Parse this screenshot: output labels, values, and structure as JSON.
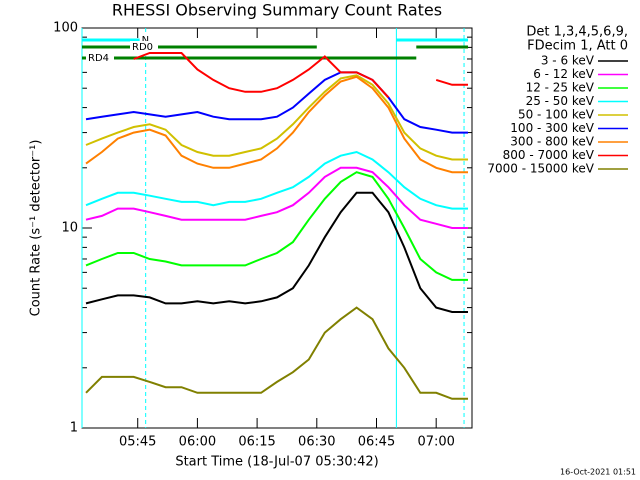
{
  "chart_data": {
    "type": "line",
    "title": "RHESSI Observing Summary Count Rates",
    "x_label": "Start Time (18-Jul-07 05:30:42)",
    "y_label": "Count Rate (s⁻¹ detector⁻¹)",
    "legend_header": [
      "Det 1,3,4,5,6,9,",
      "FDecim 1, Att 0"
    ],
    "footer": "16-Oct-2021 01:51",
    "log_y": true,
    "xlim": [
      "05:31",
      "07:09"
    ],
    "xticks": [
      "05:45",
      "06:00",
      "06:15",
      "06:30",
      "06:45",
      "07:00"
    ],
    "ylim": [
      1,
      100
    ],
    "yticks": [
      1,
      10,
      100
    ],
    "yminorticks": [
      2,
      3,
      4,
      5,
      6,
      7,
      8,
      9,
      20,
      30,
      40,
      50,
      60,
      70,
      80,
      90
    ],
    "x": [
      "05:32",
      "05:36",
      "05:40",
      "05:44",
      "05:48",
      "05:52",
      "05:56",
      "06:00",
      "06:04",
      "06:08",
      "06:12",
      "06:16",
      "06:20",
      "06:24",
      "06:28",
      "06:32",
      "06:36",
      "06:40",
      "06:44",
      "06:48",
      "06:52",
      "06:56",
      "07:00",
      "07:04",
      "07:08"
    ],
    "series": [
      {
        "name": "3 - 6 keV",
        "color": "#000000",
        "values": [
          4.2,
          4.4,
          4.6,
          4.6,
          4.5,
          4.2,
          4.2,
          4.3,
          4.2,
          4.3,
          4.2,
          4.3,
          4.5,
          5,
          6.5,
          9,
          12,
          15,
          15,
          12,
          8,
          5,
          4,
          3.8,
          3.8
        ]
      },
      {
        "name": "6 - 12 keV",
        "color": "#ff00ff",
        "values": [
          11,
          11.5,
          12.5,
          12.5,
          12,
          11.5,
          11,
          11,
          11,
          11,
          11,
          11.5,
          12,
          13,
          15,
          18,
          20,
          20,
          19,
          16,
          13,
          11,
          10.5,
          10,
          10
        ]
      },
      {
        "name": "12 - 25 keV",
        "color": "#00ff00",
        "values": [
          6.5,
          7,
          7.5,
          7.5,
          7,
          6.8,
          6.5,
          6.5,
          6.5,
          6.5,
          6.5,
          7,
          7.5,
          8.5,
          11,
          14,
          17,
          19,
          18,
          14,
          10,
          7,
          6,
          5.5,
          5.5
        ]
      },
      {
        "name": "25 - 50 keV",
        "color": "#00ffff",
        "values": [
          13,
          14,
          15,
          15,
          14.5,
          14,
          13.5,
          13.5,
          13,
          13.5,
          13.5,
          14,
          15,
          16,
          18,
          21,
          23,
          24,
          22,
          19,
          16,
          14,
          13,
          12.5,
          12.5
        ]
      },
      {
        "name": "50 - 100 keV",
        "color": "#d0c000",
        "values": [
          26,
          28,
          30,
          32,
          33,
          31,
          26,
          24,
          23,
          23,
          24,
          25,
          28,
          33,
          40,
          48,
          56,
          58,
          52,
          42,
          30,
          25,
          23,
          22,
          22
        ]
      },
      {
        "name": "100 - 300 keV",
        "color": "#0000ff",
        "values": [
          35,
          36,
          37,
          38,
          37,
          36,
          37,
          38,
          36,
          35,
          35,
          35,
          36,
          40,
          47,
          55,
          60,
          60,
          55,
          45,
          35,
          32,
          31,
          30,
          30
        ]
      },
      {
        "name": "300 - 800 keV",
        "color": "#ff8000",
        "values": [
          21,
          24,
          28,
          30,
          31,
          29,
          23,
          21,
          20,
          20,
          21,
          22,
          25,
          30,
          38,
          46,
          54,
          57,
          50,
          40,
          28,
          22,
          20,
          19,
          19
        ]
      },
      {
        "name": "800 - 7000 keV",
        "color": "#ff0000",
        "values": [
          null,
          null,
          null,
          70,
          75,
          75,
          75,
          62,
          55,
          50,
          48,
          48,
          50,
          55,
          62,
          72,
          60,
          60,
          55,
          45,
          null,
          null,
          55,
          52,
          52
        ]
      },
      {
        "name": "7000 - 15000 keV",
        "color": "#808000",
        "values": [
          1.5,
          1.8,
          1.8,
          1.8,
          1.7,
          1.6,
          1.6,
          1.5,
          1.5,
          1.5,
          1.5,
          1.5,
          1.7,
          1.9,
          2.2,
          3,
          3.5,
          4,
          3.5,
          2.5,
          2,
          1.5,
          1.5,
          1.4,
          1.4
        ]
      }
    ],
    "flag_bars": [
      {
        "label": "N",
        "start": "05:31",
        "end": "05:48",
        "color": "#00ffff"
      },
      {
        "label": null,
        "start": "06:50",
        "end": "07:08",
        "color": "#00ffff"
      },
      {
        "label": "RD0",
        "start": "05:31",
        "end": "06:30",
        "color": "#008000"
      },
      {
        "label": null,
        "start": "06:55",
        "end": "07:08",
        "color": "#008000"
      },
      {
        "label": "RD4",
        "start": "05:31",
        "end": "06:55",
        "color": "#008000"
      }
    ],
    "events": [
      {
        "time": "05:31",
        "style": "solid"
      },
      {
        "time": "05:47",
        "style": "dashed"
      },
      {
        "time": "06:50",
        "style": "solid"
      },
      {
        "time": "07:07",
        "style": "dashed"
      }
    ]
  }
}
